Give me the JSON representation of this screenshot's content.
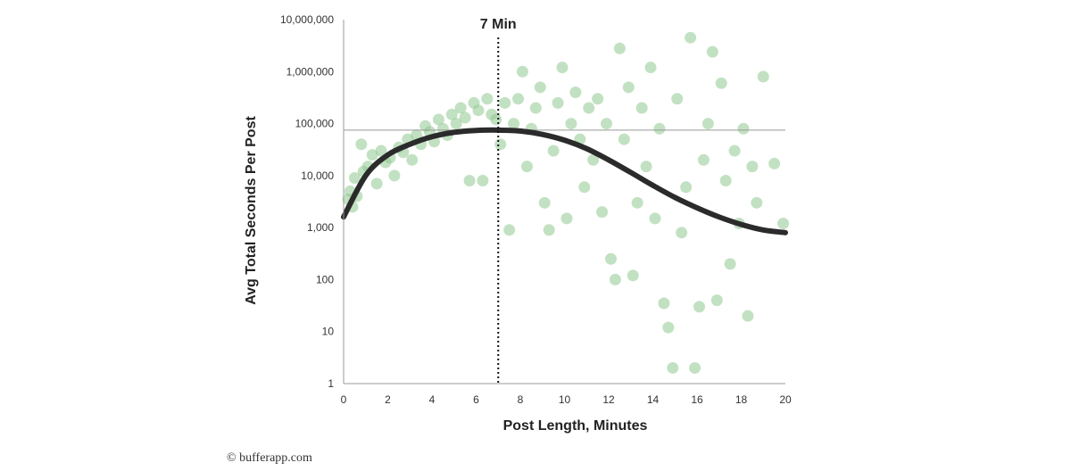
{
  "chart_data": {
    "type": "scatter",
    "xlabel": "Post Length, Minutes",
    "ylabel": "Avg Total Seconds Per Post",
    "x_ticks": [
      "0",
      "2",
      "4",
      "6",
      "8",
      "10",
      "12",
      "14",
      "16",
      "18",
      "20"
    ],
    "y_ticks": [
      "1",
      "10",
      "100",
      "1,000",
      "10,000",
      "100,000",
      "1,000,000",
      "10,000,000"
    ],
    "xlim": [
      0,
      20
    ],
    "ylim": [
      1,
      10000000
    ],
    "y_scale": "log",
    "grid": false,
    "annotation": {
      "label": "7 Min",
      "x": 7
    },
    "reference_line_y": 75000,
    "colors": {
      "points": "#8fc98f",
      "fit": "#2b2b2b",
      "marker": "#111111",
      "axis": "#999999"
    },
    "series": [
      {
        "type": "scatter",
        "points": [
          [
            0.2,
            3500
          ],
          [
            0.3,
            5000
          ],
          [
            0.4,
            2500
          ],
          [
            0.5,
            9000
          ],
          [
            0.6,
            4000
          ],
          [
            0.8,
            40000
          ],
          [
            0.9,
            12000
          ],
          [
            1.1,
            15000
          ],
          [
            1.3,
            25000
          ],
          [
            1.5,
            7000
          ],
          [
            1.7,
            30000
          ],
          [
            1.9,
            18000
          ],
          [
            2.1,
            22000
          ],
          [
            2.3,
            10000
          ],
          [
            2.5,
            35000
          ],
          [
            2.7,
            28000
          ],
          [
            2.9,
            50000
          ],
          [
            3.1,
            20000
          ],
          [
            3.3,
            60000
          ],
          [
            3.5,
            40000
          ],
          [
            3.7,
            90000
          ],
          [
            3.9,
            70000
          ],
          [
            4.1,
            45000
          ],
          [
            4.3,
            120000
          ],
          [
            4.5,
            80000
          ],
          [
            4.7,
            60000
          ],
          [
            4.9,
            150000
          ],
          [
            5.1,
            100000
          ],
          [
            5.3,
            200000
          ],
          [
            5.5,
            130000
          ],
          [
            5.7,
            8000
          ],
          [
            5.9,
            250000
          ],
          [
            6.1,
            180000
          ],
          [
            6.3,
            8000
          ],
          [
            6.5,
            300000
          ],
          [
            6.7,
            150000
          ],
          [
            6.9,
            120000
          ],
          [
            7.1,
            40000
          ],
          [
            7.3,
            250000
          ],
          [
            7.5,
            900
          ],
          [
            7.7,
            100000
          ],
          [
            7.9,
            300000
          ],
          [
            8.1,
            1000000
          ],
          [
            8.3,
            15000
          ],
          [
            8.5,
            80000
          ],
          [
            8.7,
            200000
          ],
          [
            8.9,
            500000
          ],
          [
            9.1,
            3000
          ],
          [
            9.3,
            900
          ],
          [
            9.5,
            30000
          ],
          [
            9.7,
            250000
          ],
          [
            9.9,
            1200000
          ],
          [
            10.1,
            1500
          ],
          [
            10.3,
            100000
          ],
          [
            10.5,
            400000
          ],
          [
            10.7,
            50000
          ],
          [
            10.9,
            6000
          ],
          [
            11.1,
            200000
          ],
          [
            11.3,
            20000
          ],
          [
            11.5,
            300000
          ],
          [
            11.7,
            2000
          ],
          [
            11.9,
            100000
          ],
          [
            12.1,
            250
          ],
          [
            12.3,
            100
          ],
          [
            12.5,
            2800000
          ],
          [
            12.7,
            50000
          ],
          [
            12.9,
            500000
          ],
          [
            13.1,
            120
          ],
          [
            13.3,
            3000
          ],
          [
            13.5,
            200000
          ],
          [
            13.7,
            15000
          ],
          [
            13.9,
            1200000
          ],
          [
            14.1,
            1500
          ],
          [
            14.3,
            80000
          ],
          [
            14.5,
            35
          ],
          [
            14.7,
            12
          ],
          [
            14.9,
            2
          ],
          [
            15.1,
            300000
          ],
          [
            15.3,
            800
          ],
          [
            15.5,
            6000
          ],
          [
            15.7,
            4500000
          ],
          [
            15.9,
            2
          ],
          [
            16.1,
            30
          ],
          [
            16.3,
            20000
          ],
          [
            16.5,
            100000
          ],
          [
            16.7,
            2400000
          ],
          [
            16.9,
            40
          ],
          [
            17.1,
            600000
          ],
          [
            17.3,
            8000
          ],
          [
            17.5,
            200
          ],
          [
            17.7,
            30000
          ],
          [
            17.9,
            1200
          ],
          [
            18.1,
            80000
          ],
          [
            18.3,
            20
          ],
          [
            18.5,
            15000
          ],
          [
            18.7,
            3000
          ],
          [
            19.0,
            800000
          ],
          [
            19.5,
            17000
          ],
          [
            19.9,
            1200
          ]
        ]
      },
      {
        "type": "line",
        "points": [
          [
            0,
            1600
          ],
          [
            1,
            10000
          ],
          [
            2,
            25000
          ],
          [
            3,
            40000
          ],
          [
            4,
            56000
          ],
          [
            5,
            68000
          ],
          [
            6,
            74000
          ],
          [
            7,
            75000
          ],
          [
            8,
            72000
          ],
          [
            9,
            62000
          ],
          [
            10,
            48000
          ],
          [
            11,
            33000
          ],
          [
            12,
            20000
          ],
          [
            13,
            11500
          ],
          [
            14,
            6500
          ],
          [
            15,
            3800
          ],
          [
            16,
            2400
          ],
          [
            17,
            1600
          ],
          [
            18,
            1150
          ],
          [
            19,
            900
          ],
          [
            20,
            800
          ]
        ]
      }
    ]
  },
  "credit": "© bufferapp.com"
}
